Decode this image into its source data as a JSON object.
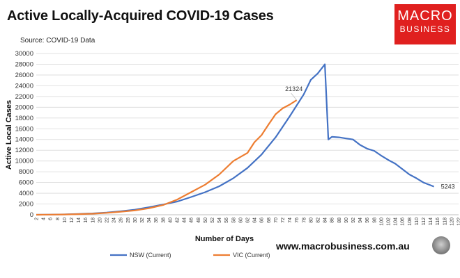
{
  "header": {
    "title": "Active Locally-Acquired COVID-19 Cases",
    "source": "Source: COVID-19 Data",
    "logo_line1": "MACRO",
    "logo_line2": "BUSINESS",
    "website": "www.macrobusiness.com.au"
  },
  "colors": {
    "nsw": "#4472c4",
    "vic": "#ed7d31",
    "grid": "#d9d9d9",
    "brand": "#e0201f"
  },
  "chart_data": {
    "type": "line",
    "title": "Active Locally-Acquired COVID-19 Cases",
    "xlabel": "Number of Days",
    "ylabel": "Active Local Cases",
    "xlim": [
      2,
      122
    ],
    "ylim": [
      0,
      30000
    ],
    "x_ticks": [
      2,
      4,
      6,
      8,
      10,
      12,
      14,
      16,
      18,
      20,
      22,
      24,
      26,
      28,
      30,
      32,
      34,
      36,
      38,
      40,
      42,
      44,
      46,
      48,
      50,
      52,
      54,
      56,
      58,
      60,
      62,
      64,
      66,
      68,
      70,
      72,
      74,
      76,
      78,
      80,
      82,
      84,
      86,
      88,
      90,
      92,
      94,
      96,
      98,
      100,
      102,
      104,
      106,
      108,
      110,
      112,
      114,
      116,
      118,
      120,
      122
    ],
    "y_ticks": [
      0,
      2000,
      4000,
      6000,
      8000,
      10000,
      12000,
      14000,
      16000,
      18000,
      20000,
      22000,
      24000,
      26000,
      28000,
      30000
    ],
    "grid": "horizontal",
    "legend_position": "bottom",
    "series": [
      {
        "name": "NSW (Current)",
        "color": "#4472c4",
        "end_label": "5243",
        "x": [
          2,
          6,
          10,
          14,
          18,
          22,
          26,
          30,
          34,
          38,
          42,
          46,
          50,
          54,
          58,
          62,
          66,
          70,
          74,
          78,
          80,
          82,
          84,
          85,
          86,
          88,
          90,
          92,
          94,
          96,
          98,
          100,
          102,
          104,
          106,
          108,
          110,
          112,
          114,
          115
        ],
        "y": [
          0,
          20,
          60,
          150,
          250,
          400,
          650,
          950,
          1400,
          1900,
          2450,
          3300,
          4200,
          5300,
          6800,
          8700,
          11200,
          14400,
          18300,
          22400,
          25100,
          26300,
          28000,
          14000,
          14500,
          14400,
          14200,
          14000,
          13000,
          12300,
          11900,
          11000,
          10200,
          9500,
          8500,
          7500,
          6800,
          6000,
          5500,
          5243
        ]
      },
      {
        "name": "VIC (Current)",
        "color": "#ed7d31",
        "end_label": "21324",
        "x": [
          2,
          6,
          10,
          14,
          18,
          22,
          26,
          30,
          34,
          38,
          42,
          46,
          50,
          54,
          58,
          62,
          64,
          66,
          68,
          70,
          72,
          74,
          76
        ],
        "y": [
          0,
          20,
          50,
          120,
          200,
          350,
          550,
          800,
          1200,
          1800,
          2800,
          4200,
          5600,
          7500,
          10000,
          11500,
          13500,
          14800,
          16800,
          18700,
          19800,
          20500,
          21324
        ]
      }
    ]
  }
}
